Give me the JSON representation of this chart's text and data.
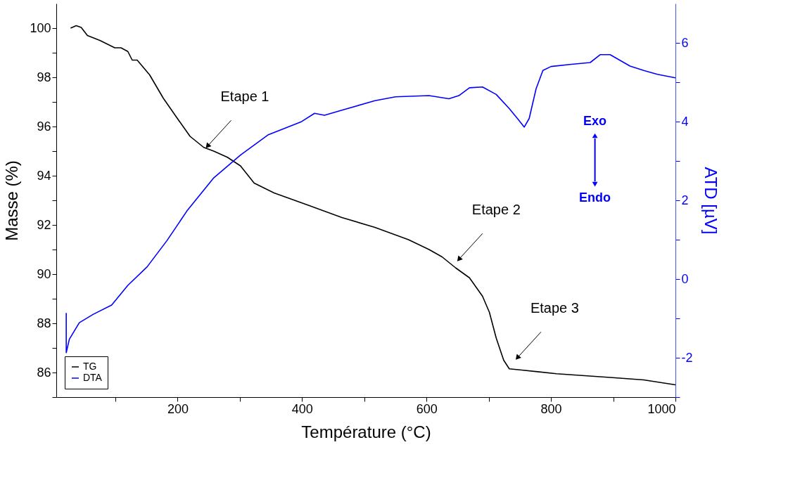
{
  "chart_data": {
    "type": "line",
    "xlabel": "Température (°C)",
    "ylabel": "Masse (%)",
    "y2label": "ATD [µV]",
    "xlim": [
      5,
      1000
    ],
    "xticks": [
      {
        "value": 100,
        "label": null
      },
      200,
      {
        "value": 300,
        "label": null
      },
      400,
      {
        "value": 500,
        "label": null
      },
      600,
      {
        "value": 700,
        "label": null
      },
      800,
      {
        "value": 900,
        "label": null
      },
      1000
    ],
    "ylim": [
      85,
      101
    ],
    "yticks": [
      {
        "value": 85,
        "label": null
      },
      86,
      {
        "value": 87,
        "label": null
      },
      88,
      {
        "value": 89,
        "label": null
      },
      90,
      {
        "value": 91,
        "label": null
      },
      92,
      {
        "value": 93,
        "label": null
      },
      94,
      {
        "value": 95,
        "label": null
      },
      96,
      {
        "value": 97,
        "label": null
      },
      98,
      {
        "value": 99,
        "label": null
      },
      100
    ],
    "y2lim": [
      -3,
      7
    ],
    "y2ticks": [
      {
        "value": -3,
        "label": null
      },
      -2,
      {
        "value": -1,
        "label": null
      },
      0,
      {
        "value": 1,
        "label": null
      },
      2,
      {
        "value": 3,
        "label": null
      },
      4,
      {
        "value": 5,
        "label": null
      },
      6
    ],
    "grid": false,
    "legend": "bottom left",
    "series": [
      {
        "name": "TG",
        "color": "#000000",
        "x": [
          28,
          37,
          45,
          55,
          75,
          99,
          109,
          120,
          127,
          135,
          155,
          177,
          199,
          220,
          242,
          258,
          280,
          301,
          323,
          355,
          410,
          464,
          517,
          571,
          604,
          625,
          647,
          669,
          690,
          701,
          712,
          724,
          733,
          753,
          809,
          895,
          949,
          1000
        ],
        "values": [
          100.0,
          100.1,
          100.03,
          99.7,
          99.5,
          99.2,
          99.2,
          99.05,
          98.7,
          98.7,
          98.1,
          97.15,
          96.35,
          95.6,
          95.15,
          95.0,
          94.75,
          94.4,
          93.7,
          93.3,
          92.8,
          92.3,
          91.9,
          91.4,
          91.0,
          90.7,
          90.25,
          89.85,
          89.1,
          88.45,
          87.4,
          86.5,
          86.15,
          86.1,
          85.95,
          85.8,
          85.7,
          85.5
        ]
      },
      {
        "name": "DTA",
        "color": "#0000ff",
        "axis": "y2",
        "x": [
          21,
          21,
          26,
          42,
          64,
          94,
          120,
          151,
          183,
          215,
          258,
          301,
          345,
          398,
          420,
          436,
          464,
          517,
          550,
          604,
          636,
          652,
          669,
          690,
          712,
          733,
          746,
          757,
          765,
          776,
          787,
          800,
          830,
          863,
          879,
          895,
          927,
          949,
          971,
          1000
        ],
        "values": [
          -0.86,
          -1.87,
          -1.53,
          -1.11,
          -0.9,
          -0.66,
          -0.16,
          0.31,
          0.98,
          1.73,
          2.57,
          3.15,
          3.66,
          3.99,
          4.21,
          4.16,
          4.29,
          4.53,
          4.63,
          4.66,
          4.58,
          4.66,
          4.86,
          4.88,
          4.69,
          4.33,
          4.08,
          3.86,
          4.08,
          4.83,
          5.3,
          5.4,
          5.45,
          5.5,
          5.7,
          5.7,
          5.41,
          5.3,
          5.2,
          5.11
        ]
      }
    ],
    "annotations": [
      {
        "text": "Etape 1",
        "x": 248,
        "y": 95.2
      },
      {
        "text": "Etape 2",
        "x": 652,
        "y": 90.6
      },
      {
        "text": "Etape 3",
        "x": 746,
        "y": 86.6
      },
      "Exo",
      "Endo"
    ]
  }
}
